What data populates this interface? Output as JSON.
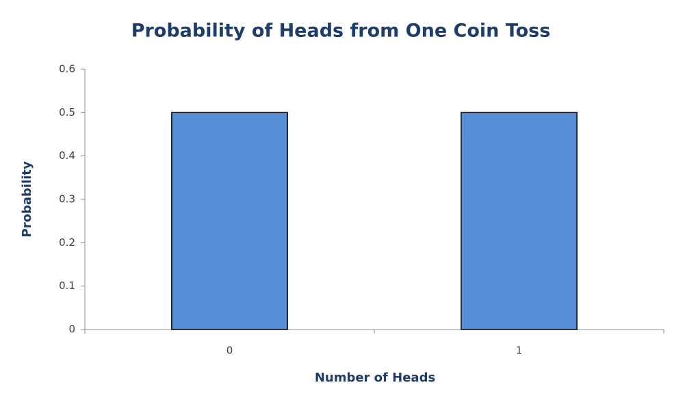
{
  "chart_data": {
    "type": "bar",
    "title": "Probability of Heads from One Coin Toss",
    "x_label": "Number of Heads",
    "y_label": "Probability",
    "categories": [
      "0",
      "1"
    ],
    "values": [
      0.5,
      0.5
    ],
    "color": "#558ed5",
    "ylim": [
      0,
      0.6
    ],
    "yticks": [
      0,
      0.1,
      0.2,
      0.3,
      0.4,
      0.5,
      0.6
    ],
    "grid": false
  }
}
